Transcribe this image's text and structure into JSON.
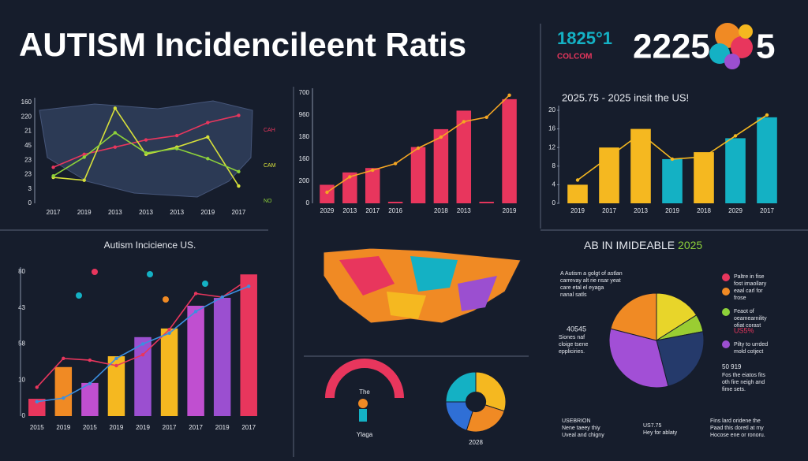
{
  "header": {
    "title": "AUTISM Incidencileent Ratis",
    "code": "1825°1",
    "code_sub": "COLCOM",
    "year": "2225",
    "year_end": "5"
  },
  "chart_data": [
    {
      "type": "line",
      "categories": [
        "2017",
        "2019",
        "2013",
        "2013",
        "2013",
        "2019",
        "2017"
      ],
      "y_labels": [
        "160",
        "220",
        "21",
        "45",
        "23",
        "23",
        "3",
        "0"
      ],
      "ylim": [
        0,
        7
      ],
      "series": [
        {
          "name": "CAH",
          "color": "#e8365d",
          "values": [
            2.5,
            3.4,
            3.9,
            4.4,
            4.7,
            5.6,
            6.1
          ]
        },
        {
          "name": "CAM",
          "color": "#d7e03a",
          "values": [
            1.8,
            1.6,
            6.6,
            3.4,
            3.9,
            4.6,
            1.2
          ]
        },
        {
          "name": "NO",
          "color": "#8dd13a",
          "values": [
            1.9,
            3.2,
            4.9,
            3.5,
            3.8,
            3.1,
            2.2
          ]
        }
      ]
    },
    {
      "type": "bar",
      "categories": [
        "2029",
        "2013",
        "2017",
        "2016",
        null,
        "2018",
        "2013",
        null,
        "2019"
      ],
      "y_labels": [
        "700",
        "960",
        "180",
        "160",
        "200",
        "0"
      ],
      "ylim": [
        0,
        5
      ],
      "values": [
        0.84,
        1.4,
        1.6,
        0.07,
        2.55,
        3.36,
        4.2,
        0.07,
        4.72
      ],
      "color": "#e8365d",
      "lines": [
        {
          "color": "#f5a623",
          "values": [
            0.5,
            1.2,
            1.5,
            1.8,
            2.5,
            3.0,
            3.7,
            3.9,
            4.9
          ]
        }
      ]
    },
    {
      "type": "bar",
      "title": "2025.75 - 2025 insit the US!",
      "categories": [
        "2019",
        "2017",
        "2013",
        "2019",
        "2018",
        "2029",
        "2017"
      ],
      "ylim": [
        0,
        20
      ],
      "yticks": [
        0,
        4,
        8,
        12,
        16,
        20
      ],
      "values": [
        4,
        12,
        16,
        9.5,
        11,
        14,
        18.5
      ],
      "colors": [
        "#f5b820",
        "#f5b820",
        "#f5b820",
        "#14b1c4",
        "#f5b820",
        "#14b1c4",
        "#14b1c4"
      ],
      "lines": [
        {
          "color": "#f5b820",
          "values": [
            5,
            10,
            15,
            9.5,
            10,
            14.5,
            19
          ]
        }
      ]
    },
    {
      "type": "bar",
      "title": "Autism Incicience US.",
      "categories": [
        "2015",
        "2019",
        "2015",
        "2019",
        "2019",
        "2017",
        "2017",
        "2019",
        "2017"
      ],
      "y_labels": [
        "80",
        "43",
        "58",
        "10",
        "0"
      ],
      "ylim": [
        0,
        4
      ],
      "values": [
        0.48,
        1.36,
        0.92,
        1.66,
        2.19,
        2.43,
        3.06,
        3.28,
        3.93
      ],
      "colors": [
        "#e8365d",
        "#f08a24",
        "#c04fd0",
        "#f5b820",
        "#9b4fd0",
        "#f5b820",
        "#c04fd0",
        "#9b4fd0",
        "#e8365d"
      ],
      "lines": [
        {
          "color": "#e8365d",
          "values": [
            0.8,
            1.6,
            1.55,
            1.4,
            1.7,
            2.4,
            3.4,
            3.3,
            3.8
          ]
        },
        {
          "color": "#3b8fe0",
          "values": [
            0.4,
            0.5,
            0.9,
            1.6,
            2.0,
            2.3,
            2.9,
            3.3,
            3.6
          ]
        }
      ]
    },
    {
      "type": "donut",
      "label": "2028",
      "values": [
        30,
        25,
        20,
        25
      ],
      "colors": [
        "#f5b820",
        "#f08a24",
        "#2f6fd6",
        "#14b1c4"
      ]
    },
    {
      "type": "pie",
      "title": "AB IN IMIDEABLE",
      "title_highlight": "2025",
      "values": [
        16,
        6,
        24,
        33,
        21
      ],
      "colors": [
        "#e8d52a",
        "#9acd32",
        "#253a6b",
        "#a24fd6",
        "#f08a24"
      ]
    }
  ],
  "gauge": {
    "top": "The",
    "bottom": "Ylaga"
  },
  "notes": {
    "left": [
      "A Autism a golgt of astlan",
      "carrevay alt rie nsar yeat",
      "care etal el eyaga",
      "nanal satls"
    ],
    "left_num": "40545",
    "left_sub": [
      "Siones naf",
      "cloige tsene",
      "eppliciries."
    ],
    "right1": [
      "Paltre in fise",
      "fost imaollary",
      "eaal carl for",
      "frose"
    ],
    "right2": [
      "Feaot of",
      "oeamearnility",
      "ofiat corast"
    ],
    "right2_pct": "US5%",
    "right3": [
      "Pilty to urrded",
      "mold cotject"
    ],
    "right_num": "50 919",
    "right4": [
      "Fos the eiatos fits",
      "oth fire neigh and",
      "fime sets."
    ],
    "bottom1": [
      "USEBRION",
      "Nene taeey thiy",
      "Uveal and chigny"
    ],
    "bottom2": [
      "US7.75",
      "Hey for ablaty"
    ],
    "bottom3": [
      "Fins lard oridene the",
      "Paad this doretl at my",
      "Hocose ene or ronoru."
    ]
  }
}
